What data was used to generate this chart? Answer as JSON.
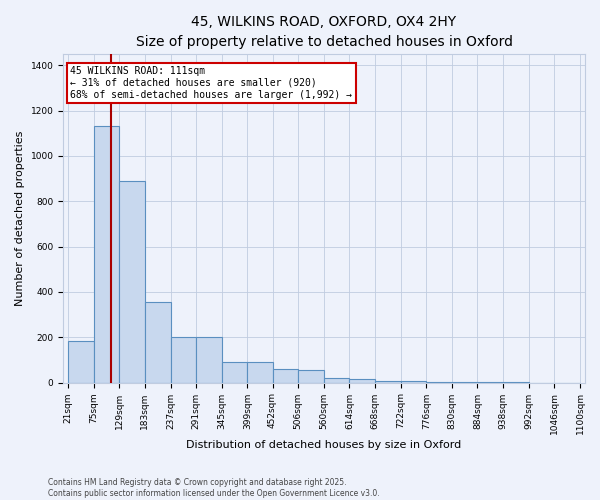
{
  "title1": "45, WILKINS ROAD, OXFORD, OX4 2HY",
  "title2": "Size of property relative to detached houses in Oxford",
  "xlabel": "Distribution of detached houses by size in Oxford",
  "ylabel": "Number of detached properties",
  "bar_edges": [
    21,
    75,
    129,
    183,
    237,
    291,
    345,
    399,
    452,
    506,
    560,
    614,
    668,
    722,
    776,
    830,
    884,
    938,
    992,
    1046,
    1100
  ],
  "bar_heights": [
    185,
    1130,
    890,
    355,
    200,
    200,
    90,
    90,
    60,
    55,
    20,
    18,
    8,
    6,
    4,
    2,
    1,
    1,
    0,
    0,
    20
  ],
  "bar_color": "#c8d8ee",
  "bar_edge_color": "#5a8fc0",
  "vline_x": 111,
  "vline_color": "#aa0000",
  "annotation_text": "45 WILKINS ROAD: 111sqm\n← 31% of detached houses are smaller (920)\n68% of semi-detached houses are larger (1,992) →",
  "annotation_box_facecolor": "#ffffff",
  "annotation_border_color": "#cc0000",
  "ylim": [
    0,
    1450
  ],
  "yticks": [
    0,
    200,
    400,
    600,
    800,
    1000,
    1200,
    1400
  ],
  "background_color": "#eef2fb",
  "grid_color": "#c0cce0",
  "footer_text": "Contains HM Land Registry data © Crown copyright and database right 2025.\nContains public sector information licensed under the Open Government Licence v3.0.",
  "tick_labels": [
    "21sqm",
    "75sqm",
    "129sqm",
    "183sqm",
    "237sqm",
    "291sqm",
    "345sqm",
    "399sqm",
    "452sqm",
    "506sqm",
    "560sqm",
    "614sqm",
    "668sqm",
    "722sqm",
    "776sqm",
    "830sqm",
    "884sqm",
    "938sqm",
    "992sqm",
    "1046sqm",
    "1100sqm"
  ],
  "title1_fontsize": 10,
  "title2_fontsize": 9,
  "xlabel_fontsize": 8,
  "ylabel_fontsize": 8,
  "tick_fontsize": 6.5,
  "footer_fontsize": 5.5,
  "annot_fontsize": 7
}
